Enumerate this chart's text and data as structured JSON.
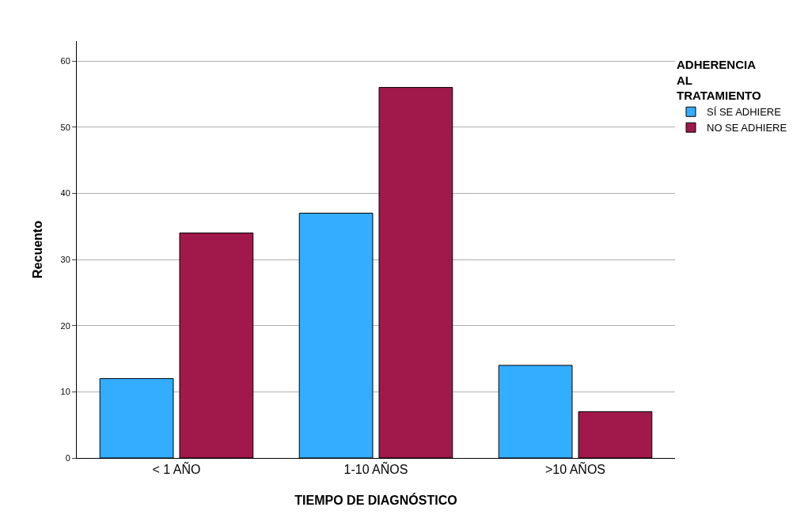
{
  "chart_data": {
    "type": "bar",
    "xlabel": "TIEMPO DE DIAGNÓSTICO",
    "ylabel": "Recuento",
    "legend_title": "ADHERENCIA AL TRATAMIENTO",
    "categories": [
      "< 1 AÑO",
      "1-10 AÑOS",
      ">10 AÑOS"
    ],
    "series": [
      {
        "name": "SÍ SE ADHIERE",
        "color": "#33adff",
        "values": [
          12,
          37,
          14
        ]
      },
      {
        "name": "NO SE ADHIERE",
        "color": "#a0194a",
        "values": [
          34,
          56,
          7
        ]
      }
    ],
    "ylim": [
      0,
      63
    ],
    "yticks": [
      0,
      10,
      20,
      30,
      40,
      50,
      60
    ],
    "grid": "y",
    "legend": "top right"
  }
}
